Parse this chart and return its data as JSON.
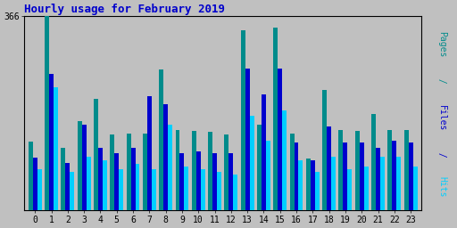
{
  "title": "Hourly usage for February 2019",
  "hours": [
    0,
    1,
    2,
    3,
    4,
    5,
    6,
    7,
    8,
    9,
    10,
    11,
    12,
    13,
    14,
    15,
    16,
    17,
    18,
    19,
    20,
    21,
    22,
    23
  ],
  "pages": [
    130,
    366,
    118,
    168,
    210,
    143,
    145,
    145,
    265,
    152,
    150,
    148,
    143,
    340,
    162,
    345,
    145,
    98,
    228,
    152,
    150,
    182,
    152,
    152
  ],
  "files": [
    100,
    258,
    90,
    162,
    118,
    108,
    118,
    215,
    200,
    108,
    112,
    108,
    108,
    268,
    218,
    268,
    128,
    95,
    158,
    128,
    128,
    118,
    132,
    128
  ],
  "hits": [
    78,
    232,
    72,
    102,
    95,
    78,
    88,
    78,
    162,
    82,
    78,
    72,
    68,
    178,
    132,
    188,
    95,
    72,
    102,
    78,
    82,
    102,
    102,
    82
  ],
  "color_pages": "#008B8B",
  "color_files": "#0000CD",
  "color_hits": "#00CFFF",
  "ylim": [
    0,
    366
  ],
  "ytick_val": 366,
  "bg_color": "#C0C0C0",
  "title_color": "#0000CC",
  "bar_width": 0.27,
  "grid_color": "#999999",
  "right_label_words": [
    "Pages",
    " / ",
    "Files",
    " / ",
    "Hits"
  ],
  "right_label_colors": [
    "#008B8B",
    "#008B8B",
    "#0000CD",
    "#0000CD",
    "#00CFFF"
  ]
}
